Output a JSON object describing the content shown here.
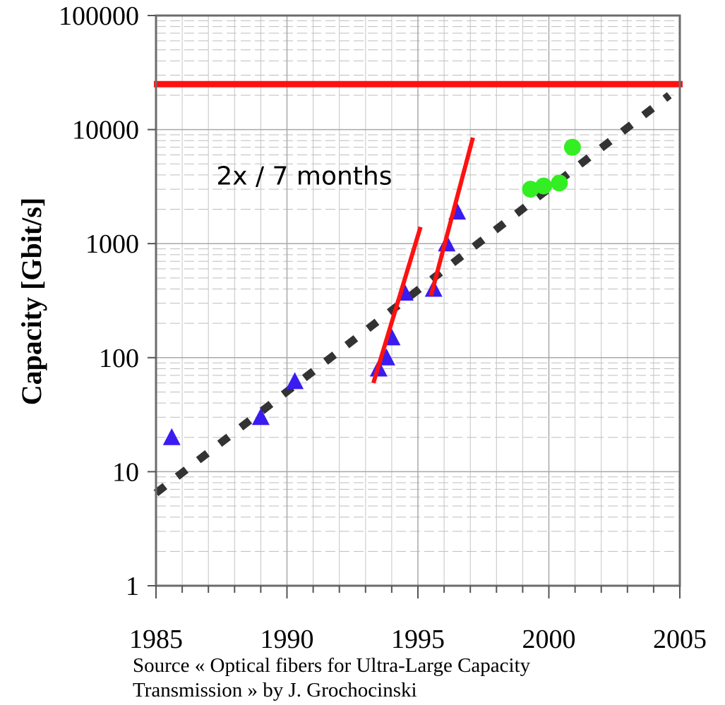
{
  "chart_data": {
    "type": "scatter",
    "title": "",
    "xlabel": "",
    "ylabel": "Capacity [Gbit/s]",
    "xlim": [
      1985,
      2005
    ],
    "ylim": [
      1,
      100000
    ],
    "yscale": "log",
    "x_ticks": [
      "1985",
      "1990",
      "1995",
      "2000",
      "2005"
    ],
    "y_ticks": [
      "1",
      "10",
      "100",
      "1000",
      "10000",
      "100000"
    ],
    "grid": true,
    "series": [
      {
        "marker": "triangle",
        "color": "#3a1cf0",
        "points": [
          {
            "x": 1985.6,
            "y": 20
          },
          {
            "x": 1989.0,
            "y": 30
          },
          {
            "x": 1990.3,
            "y": 62
          },
          {
            "x": 1993.5,
            "y": 80
          },
          {
            "x": 1993.8,
            "y": 100
          },
          {
            "x": 1994.0,
            "y": 150
          },
          {
            "x": 1994.5,
            "y": 370
          },
          {
            "x": 1995.6,
            "y": 400
          },
          {
            "x": 1996.1,
            "y": 1000
          },
          {
            "x": 1996.5,
            "y": 1900
          }
        ]
      },
      {
        "marker": "circle",
        "color": "#33ee22",
        "points": [
          {
            "x": 1999.3,
            "y": 3000
          },
          {
            "x": 1999.8,
            "y": 3200
          },
          {
            "x": 2000.4,
            "y": 3400
          },
          {
            "x": 2000.9,
            "y": 7000
          }
        ]
      }
    ],
    "trend_line": {
      "style": "dashed",
      "color": "#333333",
      "from": {
        "x": 1985,
        "y": 6.5
      },
      "to": {
        "x": 2004.6,
        "y": 20000
      }
    },
    "limit_line": {
      "style": "solid",
      "color": "#ff1111",
      "y": 25000
    },
    "steep_lines": [
      {
        "color": "#ff1111",
        "from": {
          "x": 1993.3,
          "y": 60
        },
        "to": {
          "x": 1995.1,
          "y": 1400
        }
      },
      {
        "color": "#ff1111",
        "from": {
          "x": 1995.5,
          "y": 350
        },
        "to": {
          "x": 1997.1,
          "y": 8500
        }
      }
    ],
    "annotation": {
      "text": "2x / 7 months",
      "x": 1987.3,
      "y": 3300
    }
  },
  "source": {
    "line1": "Source « Optical fibers for Ultra-Large Capacity",
    "line2": "Transmission » by J. Grochocinski"
  }
}
